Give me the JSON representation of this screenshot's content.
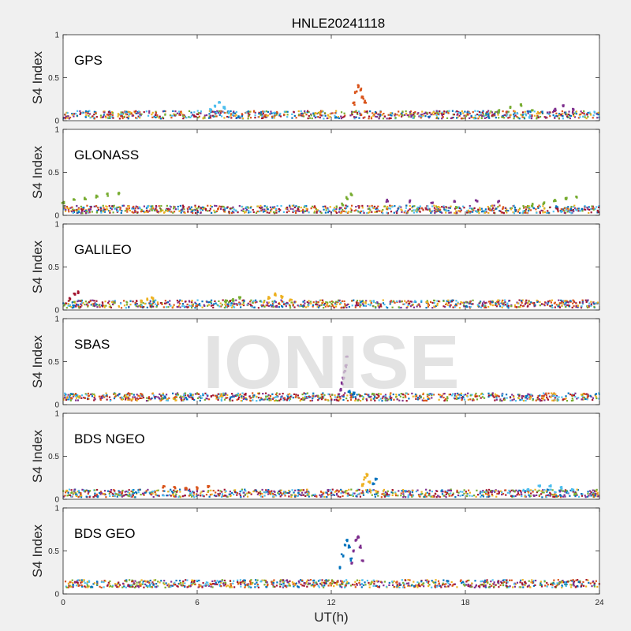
{
  "figure": {
    "title": "HNLE20241118",
    "watermark": "IONISE",
    "xlabel": "UT(h)",
    "ylabel": "S4 Index",
    "xlim": [
      0,
      24
    ],
    "xticks": [
      "0",
      "6",
      "12",
      "18",
      "24"
    ],
    "ylim": [
      0,
      1
    ],
    "yticks": [
      "0",
      "0.5",
      "1"
    ],
    "colors": [
      "#0072bd",
      "#d95319",
      "#edb120",
      "#7e2f8e",
      "#77ac30",
      "#4dbeee",
      "#a2142f"
    ]
  },
  "chart_data": [
    {
      "type": "scatter",
      "panel_label": "GPS",
      "baseline": 0.07,
      "series": [
        {
          "color": "#d95319",
          "x": [
            13.0,
            13.1,
            13.2,
            13.3,
            13.4,
            13.5
          ],
          "y": [
            0.2,
            0.33,
            0.4,
            0.36,
            0.27,
            0.22
          ]
        },
        {
          "color": "#4dbeee",
          "x": [
            6.6,
            6.8,
            7.0,
            7.2,
            7.4
          ],
          "y": [
            0.12,
            0.16,
            0.21,
            0.15,
            0.1
          ]
        },
        {
          "color": "#77ac30",
          "x": [
            19.5,
            20.0,
            20.5,
            21.0
          ],
          "y": [
            0.11,
            0.15,
            0.18,
            0.12
          ]
        },
        {
          "color": "#7e2f8e",
          "x": [
            22.0,
            22.4,
            22.8
          ],
          "y": [
            0.13,
            0.18,
            0.14
          ]
        }
      ]
    },
    {
      "type": "scatter",
      "panel_label": "GLONASS",
      "baseline": 0.07,
      "series": [
        {
          "color": "#77ac30",
          "x": [
            0,
            0.5,
            1.0,
            1.5,
            2.0,
            2.5
          ],
          "y": [
            0.15,
            0.18,
            0.2,
            0.22,
            0.24,
            0.25
          ]
        },
        {
          "color": "#7e2f8e",
          "x": [
            14.5,
            15.5,
            16.5,
            17.5,
            18.5,
            19.5
          ],
          "y": [
            0.17,
            0.16,
            0.15,
            0.16,
            0.17,
            0.16
          ]
        },
        {
          "color": "#77ac30",
          "x": [
            21.0,
            21.5,
            22.0,
            22.5,
            23.0
          ],
          "y": [
            0.12,
            0.14,
            0.17,
            0.2,
            0.22
          ]
        },
        {
          "color": "#77ac30",
          "x": [
            12.5,
            12.7,
            12.9
          ],
          "y": [
            0.13,
            0.2,
            0.24
          ]
        }
      ]
    },
    {
      "type": "scatter",
      "panel_label": "GALILEO",
      "baseline": 0.07,
      "series": [
        {
          "color": "#a2142f",
          "x": [
            0.3,
            0.5,
            0.7
          ],
          "y": [
            0.14,
            0.18,
            0.21
          ]
        },
        {
          "color": "#edb120",
          "x": [
            9.2,
            9.5,
            9.8,
            10.2
          ],
          "y": [
            0.14,
            0.18,
            0.15,
            0.11
          ]
        },
        {
          "color": "#77ac30",
          "x": [
            7.3,
            7.6,
            7.9
          ],
          "y": [
            0.1,
            0.12,
            0.14
          ]
        },
        {
          "color": "#edb120",
          "x": [
            3.5,
            3.8,
            4.0
          ],
          "y": [
            0.1,
            0.12,
            0.14
          ]
        }
      ]
    },
    {
      "type": "scatter",
      "panel_label": "SBAS",
      "baseline": 0.09,
      "series": [
        {
          "color": "#7e2f8e",
          "x": [
            12.4,
            12.5,
            12.55,
            12.6,
            12.65,
            12.7
          ],
          "y": [
            0.17,
            0.25,
            0.31,
            0.38,
            0.45,
            0.55
          ]
        },
        {
          "color": "#0072bd",
          "x": [
            12.8,
            13.0
          ],
          "y": [
            0.15,
            0.13
          ]
        }
      ]
    },
    {
      "type": "scatter",
      "panel_label": "BDS NGEO",
      "baseline": 0.07,
      "series": [
        {
          "color": "#edb120",
          "x": [
            13.4,
            13.5,
            13.6,
            13.7
          ],
          "y": [
            0.17,
            0.24,
            0.28,
            0.2
          ]
        },
        {
          "color": "#0072bd",
          "x": [
            13.9,
            14.0
          ],
          "y": [
            0.18,
            0.23
          ]
        },
        {
          "color": "#d95319",
          "x": [
            4.5,
            5.0,
            5.5,
            6.0,
            6.5
          ],
          "y": [
            0.14,
            0.13,
            0.12,
            0.13,
            0.15
          ]
        },
        {
          "color": "#4dbeee",
          "x": [
            20.8,
            21.3,
            21.8,
            22.3,
            22.8
          ],
          "y": [
            0.12,
            0.16,
            0.15,
            0.13,
            0.11
          ]
        }
      ]
    },
    {
      "type": "scatter",
      "panel_label": "BDS GEO",
      "baseline": 0.12,
      "series": [
        {
          "color": "#0072bd",
          "x": [
            12.4,
            12.5,
            12.6,
            12.7,
            12.8,
            12.9
          ],
          "y": [
            0.3,
            0.45,
            0.58,
            0.62,
            0.55,
            0.4
          ]
        },
        {
          "color": "#7e2f8e",
          "x": [
            12.9,
            13.0,
            13.1,
            13.2,
            13.3,
            13.4
          ],
          "y": [
            0.35,
            0.5,
            0.62,
            0.66,
            0.55,
            0.38
          ]
        }
      ]
    }
  ]
}
